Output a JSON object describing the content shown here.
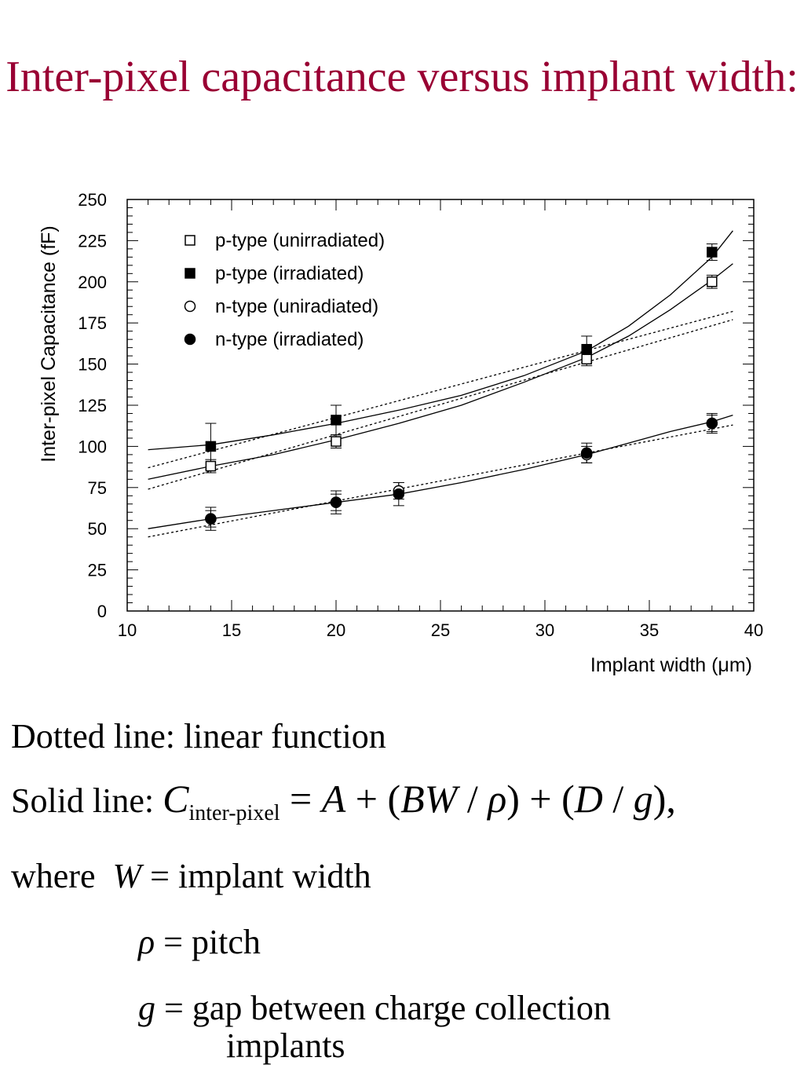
{
  "slide": {
    "title": "Inter-pixel capacitance versus implant width:"
  },
  "chart_data": {
    "type": "scatter",
    "title": "",
    "xlabel": "Implant width (μm)",
    "ylabel": "Inter-pixel Capacitance (fF)",
    "xlim": [
      10,
      40
    ],
    "ylim": [
      0,
      250
    ],
    "xticks": [
      10,
      15,
      20,
      25,
      30,
      35,
      40
    ],
    "yticks": [
      0,
      25,
      50,
      75,
      100,
      125,
      150,
      175,
      200,
      225,
      250
    ],
    "grid": false,
    "legend_position": "top-left",
    "series": [
      {
        "name": "p-type (unirradiated)",
        "marker": "open-square",
        "x": [
          14,
          20,
          32,
          38
        ],
        "y": [
          88,
          103,
          153,
          200
        ],
        "err": [
          4,
          4,
          4,
          4
        ]
      },
      {
        "name": "p-type (irradiated)",
        "marker": "filled-square",
        "x": [
          14,
          20,
          32,
          38
        ],
        "y": [
          100,
          116,
          159,
          218
        ],
        "err": [
          14,
          9,
          8,
          5
        ]
      },
      {
        "name": "n-type (uniradiated)",
        "marker": "open-circle",
        "x": [
          14,
          20,
          23,
          32,
          38
        ],
        "y": [
          56,
          66,
          73,
          95,
          114
        ],
        "err": [
          5,
          5,
          5,
          5,
          5
        ]
      },
      {
        "name": "n-type (irradiated)",
        "marker": "filled-circle",
        "x": [
          14,
          20,
          23,
          32,
          38
        ],
        "y": [
          56,
          66,
          71,
          96,
          114
        ],
        "err": [
          7,
          7,
          7,
          6,
          6
        ]
      }
    ],
    "fits": [
      {
        "style": "solid",
        "x": [
          11,
          14,
          17,
          20,
          23,
          26,
          29,
          32,
          34,
          36,
          38,
          39
        ],
        "y": [
          98,
          101,
          107,
          114,
          122,
          131,
          143,
          158,
          173,
          192,
          215,
          231
        ]
      },
      {
        "style": "solid",
        "x": [
          11,
          14,
          17,
          20,
          23,
          26,
          29,
          32,
          34,
          36,
          38,
          39
        ],
        "y": [
          80,
          88,
          95,
          104,
          114,
          125,
          139,
          154,
          167,
          183,
          201,
          211
        ]
      },
      {
        "style": "solid",
        "x": [
          11,
          14,
          17,
          20,
          23,
          26,
          29,
          32,
          34,
          36,
          38,
          39
        ],
        "y": [
          50,
          56,
          61,
          66,
          71,
          78,
          86,
          95,
          102,
          109,
          115,
          119
        ]
      },
      {
        "style": "dotted",
        "x": [
          11,
          39
        ],
        "y": [
          87,
          182
        ]
      },
      {
        "style": "dotted",
        "x": [
          11,
          39
        ],
        "y": [
          74,
          177
        ]
      },
      {
        "style": "dotted",
        "x": [
          11,
          39
        ],
        "y": [
          45,
          113
        ]
      }
    ]
  },
  "notes": {
    "dotted": "Dotted line: linear function",
    "solid_prefix": "Solid line:",
    "formula_C": "C",
    "formula_sub": "inter-pixel",
    "formula_eq": " = ",
    "formula_A": "A",
    "formula_plus1": " + (",
    "formula_BW": "BW",
    "formula_slash1": " / ",
    "formula_rho": "ρ",
    "formula_close1": ") + (",
    "formula_D": "D",
    "formula_slash2": " / ",
    "formula_g": "g",
    "formula_close2": "),",
    "where": "where",
    "def_W_sym": "W",
    "def_W_text": " = implant width",
    "def_rho_sym": "ρ",
    "def_rho_text": " = pitch",
    "def_g_sym": "g",
    "def_g_text": " = gap between charge collection",
    "def_g_text2": "implants"
  }
}
